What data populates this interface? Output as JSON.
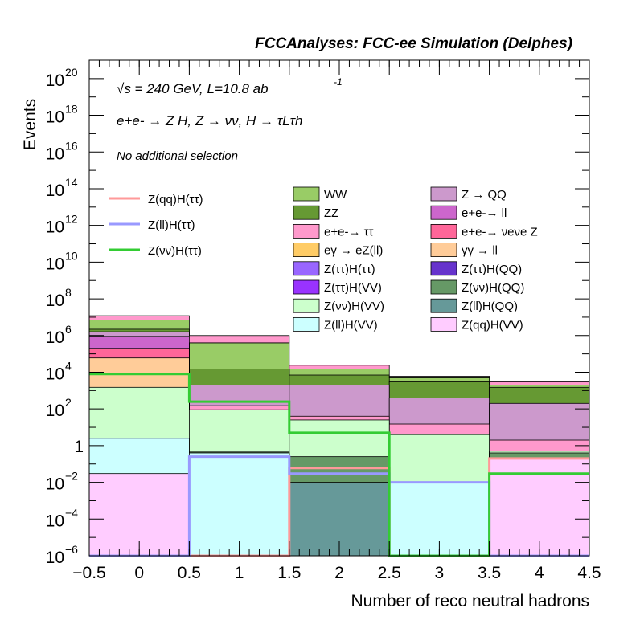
{
  "header": "FCCAnalyses: FCC-ee Simulation (Delphes)",
  "annotations": {
    "energy_line": "√s = 240 GeV, L=10.8 ab",
    "energy_exp": "-1",
    "process_line": "e+e- → Z H, Z → νν, H → τLτh",
    "selection": "No additional selection"
  },
  "chart_data": {
    "type": "bar",
    "stacked": true,
    "log_y": true,
    "xlabel": "Number of reco neutral hadrons",
    "ylabel": "Events",
    "xlim": [
      -0.5,
      4.5
    ],
    "ylim": [
      1e-06,
      1e+21
    ],
    "bin_edges": [
      -0.5,
      0.5,
      1.5,
      2.5,
      3.5,
      4.5
    ],
    "x_ticks": [
      "−0.5",
      "0",
      "0.5",
      "1",
      "1.5",
      "2",
      "2.5",
      "3",
      "3.5",
      "4",
      "4.5"
    ],
    "y_ticks": [
      {
        "base": "10",
        "exp": "−6",
        "v": 1e-06
      },
      {
        "base": "10",
        "exp": "−4",
        "v": 0.0001
      },
      {
        "base": "10",
        "exp": "−2",
        "v": 0.01
      },
      {
        "base": "1",
        "exp": "",
        "v": 1
      },
      {
        "base": "10",
        "exp": "2",
        "v": 100.0
      },
      {
        "base": "10",
        "exp": "4",
        "v": 10000.0
      },
      {
        "base": "10",
        "exp": "6",
        "v": 1000000.0
      },
      {
        "base": "10",
        "exp": "8",
        "v": 100000000.0
      },
      {
        "base": "10",
        "exp": "10",
        "v": 10000000000.0
      },
      {
        "base": "10",
        "exp": "12",
        "v": 1000000000000.0
      },
      {
        "base": "10",
        "exp": "14",
        "v": 100000000000000.0
      },
      {
        "base": "10",
        "exp": "16",
        "v": 1e+16
      },
      {
        "base": "10",
        "exp": "18",
        "v": 1e+18
      },
      {
        "base": "10",
        "exp": "20",
        "v": 1e+20
      }
    ],
    "stack_tops": [
      {
        "name": "Z(qq)H(VV)",
        "color": "#ffccff",
        "values": [
          0.03,
          0,
          1e-06,
          1e-06,
          0.2
        ]
      },
      {
        "name": "Z(ll)H(VV)",
        "color": "#ccffff",
        "values": [
          2.5,
          0.4,
          1e-06,
          0.01,
          0.2
        ]
      },
      {
        "name": "Z(ll)H(QQ)",
        "color": "#669999",
        "values": [
          0.0025,
          0,
          0.01,
          1e-06,
          1e-06
        ]
      },
      {
        "name": "Z(νν)H(QQ)",
        "color": "#669966",
        "values": [
          0.35,
          0.45,
          0.25,
          1e-06,
          0.4
        ]
      },
      {
        "name": "Z(ττ)H(QQ)",
        "color": "#6633cc",
        "values": [
          2e-05,
          0,
          1e-06,
          1e-06,
          1e-06
        ]
      },
      {
        "name": "Z(νν)H(VV)",
        "color": "#ccffcc",
        "values": [
          1500,
          90,
          25,
          4,
          0.5
        ]
      },
      {
        "name": "Z(ττ)H(VV)",
        "color": "#9933ff",
        "values": [
          50,
          1.6,
          0.7,
          1e-06,
          1e-06
        ]
      },
      {
        "name": "Z(ττ)H(ττ)",
        "color": "#9966ff",
        "values": [
          15,
          1.3,
          0.7,
          1e-06,
          1e-06
        ]
      },
      {
        "name": "γγ → ll",
        "color": "#ffcc99",
        "values": [
          60000,
          0,
          1e-06,
          1e-06,
          1e-06
        ]
      },
      {
        "name": "eγ → eZ(ll)",
        "color": "#ffcc66",
        "values": [
          15000,
          0,
          1e-06,
          1e-06,
          1e-06
        ]
      },
      {
        "name": "e+e-→ νeνe Z",
        "color": "#ff6699",
        "values": [
          200000,
          0,
          1e-06,
          1e-06,
          1e-06
        ]
      },
      {
        "name": "e+e-→ ττ",
        "color": "#ff99cc",
        "values": [
          180,
          150,
          40,
          15,
          2
        ]
      },
      {
        "name": "e+e-→ ll",
        "color": "#cc66cc",
        "values": [
          900000,
          0,
          1e-06,
          1e-06,
          1e-06
        ]
      },
      {
        "name": "Z → QQ",
        "color": "#cc99cc",
        "values": [
          1600000,
          2000,
          2000,
          400,
          200
        ]
      },
      {
        "name": "ZZ",
        "color": "#669933",
        "values": [
          2200000,
          15000,
          7000,
          3000,
          1500
        ]
      },
      {
        "name": "WW",
        "color": "#99cc66",
        "values": [
          7000000,
          400000,
          15000,
          5000,
          2000
        ]
      }
    ],
    "stack_overlays": [
      {
        "name": "e+e-→ ττ",
        "color": "#ff99cc",
        "values": [
          12000000,
          1000000,
          24000,
          6000,
          3000
        ]
      }
    ],
    "signal_lines": [
      {
        "name": "Z(qq)H(ττ)",
        "color": "#ff9999",
        "values": [
          1e-06,
          1e-06,
          0.06,
          1e-06,
          0.2
        ]
      },
      {
        "name": "Z(ll)H(ττ)",
        "color": "#9999ff",
        "values": [
          1e-06,
          0.25,
          0.03,
          0.01,
          1e-06
        ]
      },
      {
        "name": "Z(νν)H(ττ)",
        "color": "#33cc33",
        "values": [
          8000,
          250,
          5,
          1e-06,
          0.03
        ]
      }
    ],
    "legend_lines": [
      {
        "label": "Z(qq)H(ττ)",
        "color": "#ff9999"
      },
      {
        "label": "Z(ll)H(ττ)",
        "color": "#9999ff"
      },
      {
        "label": "Z(νν)H(ττ)",
        "color": "#33cc33"
      }
    ],
    "legend_boxes": [
      {
        "label": "WW",
        "color": "#99cc66"
      },
      {
        "label": "Z → QQ",
        "color": "#cc99cc"
      },
      {
        "label": "ZZ",
        "color": "#669933"
      },
      {
        "label": "e+e-→ ll",
        "color": "#cc66cc"
      },
      {
        "label": "e+e-→ ττ",
        "color": "#ff99cc"
      },
      {
        "label": "e+e-→ νeνe Z",
        "color": "#ff6699"
      },
      {
        "label": "eγ → eZ(ll)",
        "color": "#ffcc66"
      },
      {
        "label": "γγ → ll",
        "color": "#ffcc99"
      },
      {
        "label": "Z(ττ)H(ττ)",
        "color": "#9966ff"
      },
      {
        "label": "Z(ττ)H(QQ)",
        "color": "#6633cc"
      },
      {
        "label": "Z(ττ)H(VV)",
        "color": "#9933ff"
      },
      {
        "label": "Z(νν)H(QQ)",
        "color": "#669966"
      },
      {
        "label": "Z(νν)H(VV)",
        "color": "#ccffcc"
      },
      {
        "label": "Z(ll)H(QQ)",
        "color": "#669999"
      },
      {
        "label": "Z(ll)H(VV)",
        "color": "#ccffff"
      },
      {
        "label": "Z(qq)H(VV)",
        "color": "#ffccff"
      }
    ]
  }
}
